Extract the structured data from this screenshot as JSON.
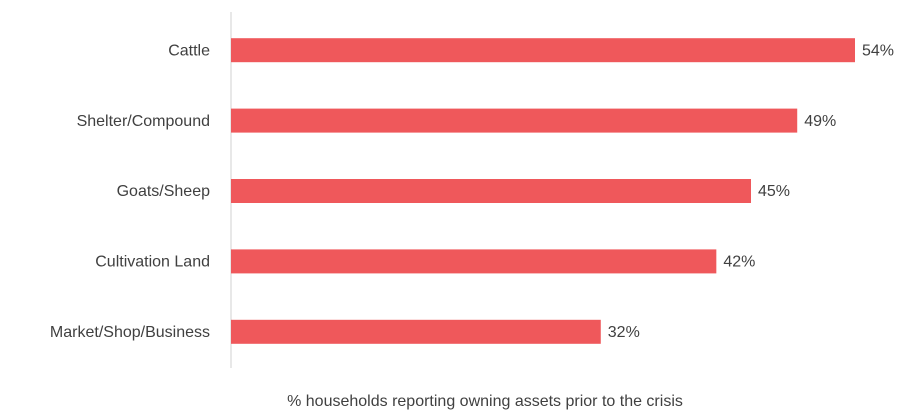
{
  "chart_data": {
    "type": "bar",
    "orientation": "horizontal",
    "categories": [
      "Cattle",
      "Shelter/Compound",
      "Goats/Sheep",
      "Cultivation Land",
      "Market/Shop/Business"
    ],
    "values": [
      54,
      49,
      45,
      42,
      32
    ],
    "value_labels": [
      "54%",
      "49%",
      "45%",
      "42%",
      "32%"
    ],
    "color": "#ef585b",
    "xlabel": "% households reporting owning assets prior to the crisis"
  }
}
